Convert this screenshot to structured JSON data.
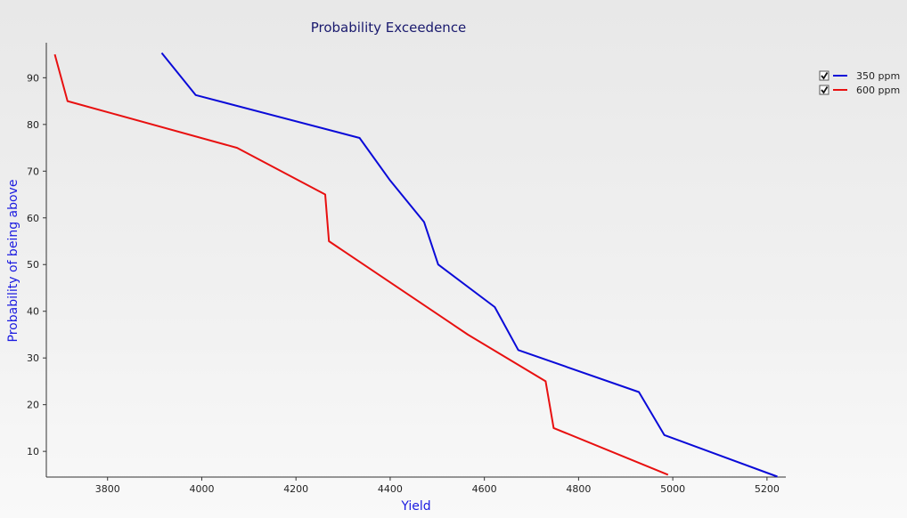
{
  "chart_data": {
    "type": "line",
    "title": "Probability Exceedence",
    "xlabel": "Yield",
    "ylabel": "Probability of being above",
    "xlim": [
      3670,
      5240
    ],
    "ylim": [
      4.5,
      97.5
    ],
    "xticks": [
      3800,
      4000,
      4200,
      4400,
      4600,
      4800,
      5000,
      5200
    ],
    "yticks": [
      10,
      20,
      30,
      40,
      50,
      60,
      70,
      80,
      90
    ],
    "grid": false,
    "legend": "top-right",
    "series": [
      {
        "name": "350 ppm",
        "color": "#0a0ad8",
        "checked": true,
        "points": [
          [
            3915,
            95.3
          ],
          [
            3987,
            86.3
          ],
          [
            4335,
            77.1
          ],
          [
            4400,
            68.0
          ],
          [
            4472,
            59.1
          ],
          [
            4502,
            50.0
          ],
          [
            4622,
            40.9
          ],
          [
            4672,
            31.7
          ],
          [
            4928,
            22.7
          ],
          [
            4982,
            13.5
          ],
          [
            5222,
            4.6
          ]
        ]
      },
      {
        "name": "600 ppm",
        "color": "#e81010",
        "checked": true,
        "points": [
          [
            3688,
            95.0
          ],
          [
            3715,
            85.0
          ],
          [
            4075,
            75.0
          ],
          [
            4262,
            65.0
          ],
          [
            4270,
            55.0
          ],
          [
            4565,
            35.0
          ],
          [
            4730,
            25.0
          ],
          [
            4747,
            15.0
          ],
          [
            4990,
            5.0
          ]
        ]
      }
    ]
  }
}
